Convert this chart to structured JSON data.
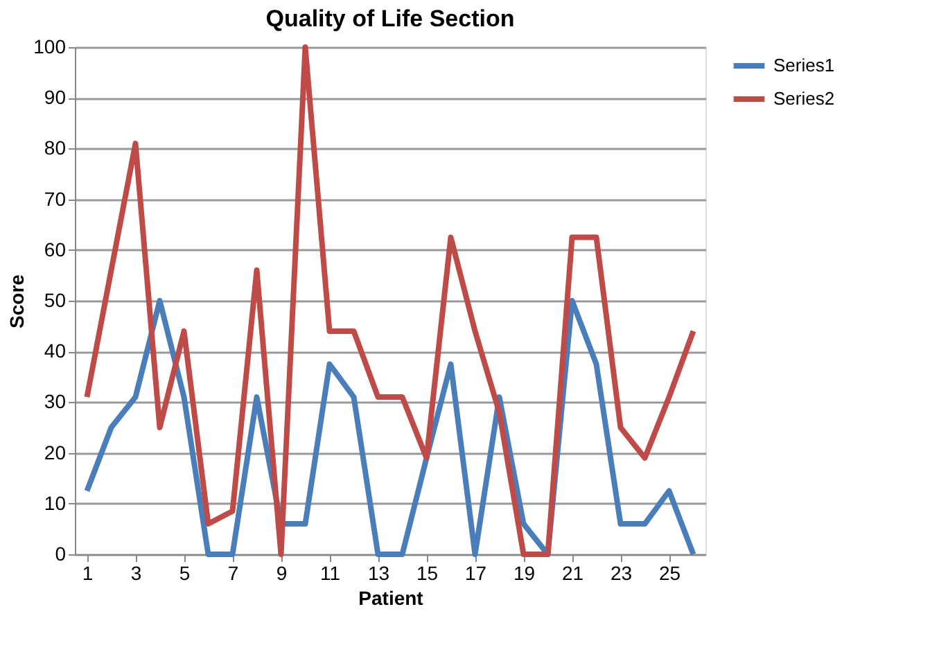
{
  "chart_data": {
    "type": "line",
    "title": "Quality of Life Section",
    "xlabel": "Patient",
    "ylabel": "Score",
    "x": [
      1,
      2,
      3,
      4,
      5,
      6,
      7,
      8,
      9,
      10,
      11,
      12,
      13,
      14,
      15,
      16,
      17,
      18,
      19,
      20,
      21,
      22,
      23,
      24,
      25,
      26
    ],
    "xlim": [
      0.5,
      26.5
    ],
    "xticks": [
      1,
      3,
      5,
      7,
      9,
      11,
      13,
      15,
      17,
      19,
      21,
      23,
      25
    ],
    "ylim": [
      0,
      100
    ],
    "yticks": [
      0,
      10,
      20,
      30,
      40,
      50,
      60,
      70,
      80,
      90,
      100
    ],
    "grid": "y",
    "legend": "right",
    "marker": "none",
    "line_style": "solid",
    "series": [
      {
        "name": "Series1",
        "color": "#4a7ebb",
        "values": [
          12.5,
          25,
          31,
          50,
          31,
          0,
          0,
          31,
          6,
          6,
          37.5,
          31,
          0,
          0,
          19,
          37.5,
          0,
          31,
          6,
          0,
          50,
          37.5,
          6,
          6,
          12.5,
          0
        ]
      },
      {
        "name": "Series2",
        "color": "#be4b48",
        "values": [
          31,
          56,
          81,
          25,
          44,
          6,
          8.5,
          56,
          0,
          100,
          44,
          44,
          31,
          31,
          19,
          62.5,
          44,
          28,
          0,
          0,
          62.5,
          62.5,
          25,
          19,
          31,
          44
        ]
      }
    ]
  }
}
